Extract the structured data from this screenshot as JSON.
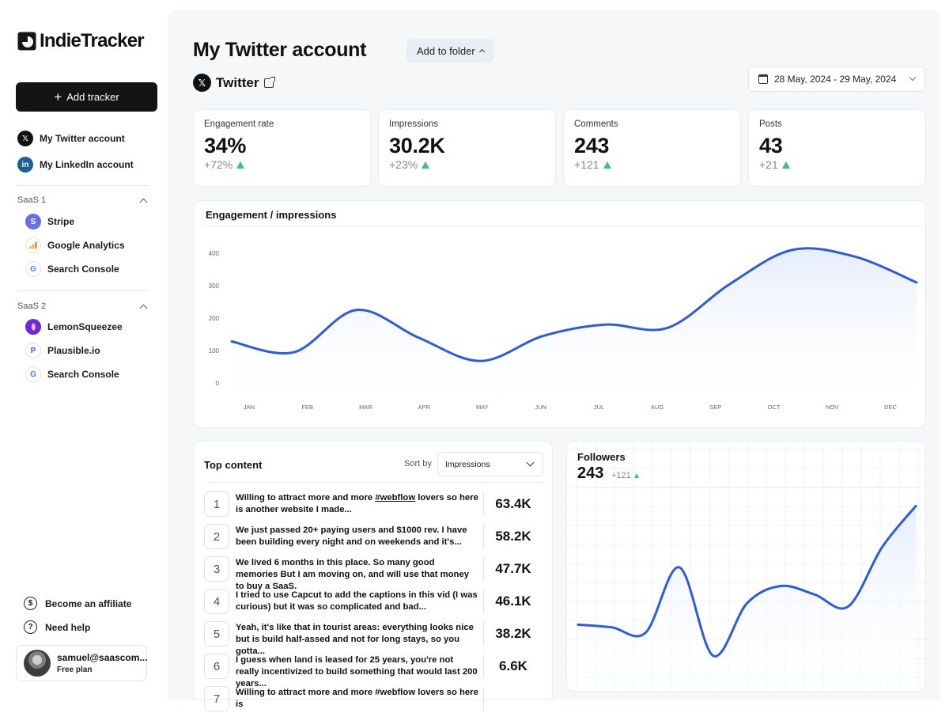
{
  "app": {
    "name": "IndieTracker"
  },
  "sidebar": {
    "add_tracker_label": "Add tracker",
    "accounts": [
      {
        "label": "My Twitter account",
        "icon": "x-logo-icon",
        "glyph": "𝕏"
      },
      {
        "label": "My LinkedIn account",
        "icon": "linkedin-logo-icon",
        "glyph": "in"
      }
    ],
    "groups": [
      {
        "title": "SaaS 1",
        "items": [
          {
            "label": "Stripe",
            "icon": "stripe-logo-icon",
            "glyph": "S"
          },
          {
            "label": "Google Analytics",
            "icon": "google-analytics-logo-icon",
            "glyph": ""
          },
          {
            "label": "Search Console",
            "icon": "google-logo-icon",
            "glyph": "G"
          }
        ]
      },
      {
        "title": "SaaS 2",
        "items": [
          {
            "label": "LemonSqueezee",
            "icon": "lemonsqueezy-logo-icon",
            "glyph": ""
          },
          {
            "label": "Plausible.io",
            "icon": "plausible-logo-icon",
            "glyph": "P"
          },
          {
            "label": "Search Console",
            "icon": "google-logo-icon",
            "glyph": "G"
          }
        ]
      }
    ],
    "footer": {
      "affiliate_label": "Become an affiliate",
      "help_label": "Need help",
      "user_email": "samuel@saascom...",
      "user_plan": "Free plan"
    }
  },
  "header": {
    "title": "My Twitter account",
    "folder_button": "Add to folder",
    "platform": "Twitter",
    "date_range": "28 May, 2024 - 29 May, 2024"
  },
  "stats": [
    {
      "label": "Engagement rate",
      "value": "34%",
      "delta": "+72%"
    },
    {
      "label": "Impressions",
      "value": "30.2K",
      "delta": "+23%"
    },
    {
      "label": "Comments",
      "value": "243",
      "delta": "+121"
    },
    {
      "label": "Posts",
      "value": "43",
      "delta": "+21"
    }
  ],
  "colors": {
    "accent": "#2f5bd6",
    "positive": "#34c77b",
    "fill": "#e6eefc"
  },
  "chart_data": [
    {
      "type": "area",
      "title": "Engagement / impressions",
      "categories": [
        "JAN",
        "FEB",
        "MAR",
        "APR",
        "MAY",
        "JUN",
        "JUL",
        "AUG",
        "SEP",
        "OCT",
        "NOV",
        "DEC"
      ],
      "y_ticks": [
        0,
        100,
        200,
        300,
        400
      ],
      "ylim": [
        0,
        400
      ],
      "values": [
        128,
        95,
        225,
        140,
        68,
        145,
        180,
        170,
        305,
        410,
        390,
        310
      ],
      "grid": false
    },
    {
      "type": "area",
      "title": "Followers",
      "values": [
        108,
        102,
        90,
        237,
        38,
        156,
        195,
        176,
        149,
        282,
        375
      ],
      "ylim": [
        0,
        520
      ],
      "grid": true
    }
  ],
  "followers": {
    "title": "Followers",
    "value": "243",
    "delta": "+121"
  },
  "top_content": {
    "title": "Top content",
    "sort_label": "Sort by",
    "sort_value": "Impressions",
    "rows": [
      {
        "rank": "1",
        "text_before": "Willing to attract more and more ",
        "hashtag": "#webflow",
        "text_after": " lovers so here is another website I made...",
        "value": "63.4K"
      },
      {
        "rank": "2",
        "text_before": "We just passed 20+ paying users and $1000 rev. I have been building every night and on weekends and it's...",
        "hashtag": "",
        "text_after": "",
        "value": "58.2K"
      },
      {
        "rank": "3",
        "text_before": "We lived 6 months in this place. So many good memories But I am moving on, and will use that money to buy a SaaS.",
        "hashtag": "",
        "text_after": "",
        "value": "47.7K"
      },
      {
        "rank": "4",
        "text_before": "I tried to use Capcut to add the captions in this vid (I was curious) but it was so complicated and bad...",
        "hashtag": "",
        "text_after": "",
        "value": "46.1K"
      },
      {
        "rank": "5",
        "text_before": "Yeah, it's like that in tourist areas: everything looks nice but is build half-assed and not for long stays, so you gotta...",
        "hashtag": "",
        "text_after": "",
        "value": "38.2K"
      },
      {
        "rank": "6",
        "text_before": "I guess when land is leased for 25 years, you're not really incentivized to build something that would last 200 years...",
        "hashtag": "",
        "text_after": "",
        "value": "6.6K"
      },
      {
        "rank": "7",
        "text_before": "Willing to attract more and more #webflow lovers so here is",
        "hashtag": "",
        "text_after": "",
        "value": ""
      }
    ]
  }
}
